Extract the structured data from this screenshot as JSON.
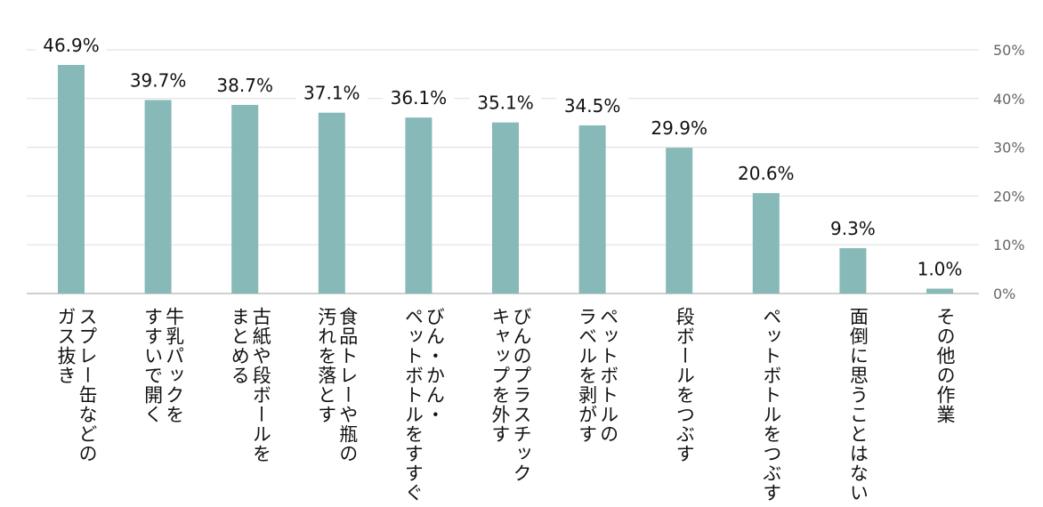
{
  "chart_data": {
    "type": "bar",
    "categories": [
      [
        "スプレー缶などの",
        "ガス抜き"
      ],
      [
        "牛乳パックを",
        "すすいで開く"
      ],
      [
        "古紙や段ボールを",
        "まとめる"
      ],
      [
        "食品トレーや瓶の",
        "汚れを落とす"
      ],
      [
        "びん・かん・",
        "ペットボトルをすすぐ"
      ],
      [
        "びんのプラスチック",
        "キャップを外す"
      ],
      [
        "ペットボトルの",
        "ラベルを剥がす"
      ],
      [
        "段ボールをつぶす"
      ],
      [
        "ペットボトルをつぶす"
      ],
      [
        "面倒に思うことはない"
      ],
      [
        "その他の作業"
      ]
    ],
    "values": [
      46.9,
      39.7,
      38.7,
      37.1,
      36.1,
      35.1,
      34.5,
      29.9,
      20.6,
      9.3,
      1.0
    ],
    "value_labels": [
      "46.9%",
      "39.7%",
      "38.7%",
      "37.1%",
      "36.1%",
      "35.1%",
      "34.5%",
      "29.9%",
      "20.6%",
      "9.3%",
      "1.0%"
    ],
    "yticks": [
      0,
      10,
      20,
      30,
      40,
      50
    ],
    "ytick_labels": [
      "0%",
      "10%",
      "20%",
      "30%",
      "40%",
      "50%"
    ],
    "ylim": [
      0,
      50
    ],
    "y_axis_side": "right",
    "grid": true,
    "bar_color": "#86b9b7",
    "grid_color": "#dddddd",
    "axis_color": "#bfbfbf",
    "label_color": "#111111",
    "tick_color": "#666666"
  }
}
